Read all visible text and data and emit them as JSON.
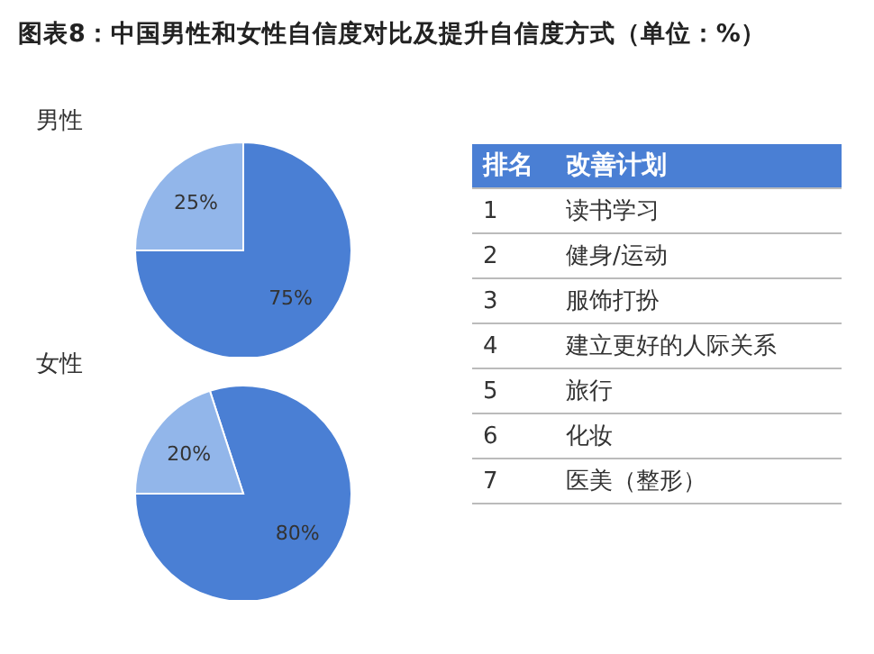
{
  "chart_data": [
    {
      "type": "pie",
      "title": "图表8：中国男性和女性自信度对比及提升自信度方式（单位：%）",
      "subtitle": "男性",
      "categories": [
        null,
        null
      ],
      "values": [
        75,
        25
      ],
      "colors": [
        "#4a7fd4",
        "#92b6ea"
      ],
      "value_labels": [
        "75%",
        "25%"
      ]
    },
    {
      "type": "pie",
      "subtitle": "女性",
      "categories": [
        null,
        null
      ],
      "values": [
        80,
        20
      ],
      "colors": [
        "#4a7fd4",
        "#92b6ea"
      ],
      "value_labels": [
        "80%",
        "20%"
      ]
    },
    {
      "type": "other",
      "xlabel": "排名",
      "ylabel": "改善计划",
      "categories": [
        "读书学习",
        "健身/运动",
        "服饰打扮",
        "建立更好的人际关系",
        "旅行",
        "化妆",
        "医美（整形）"
      ],
      "values": [
        1,
        2,
        3,
        4,
        5,
        6,
        7
      ],
      "data_labels": true,
      "color": "#4a7fd4"
    }
  ]
}
